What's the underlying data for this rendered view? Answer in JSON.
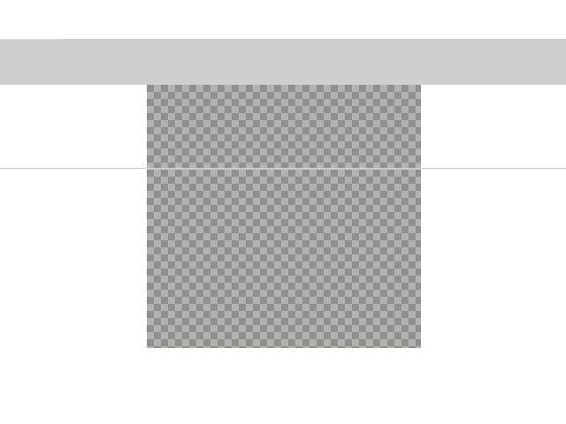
{
  "window": {
    "title": ""
  },
  "toolbar": {
    "label": ""
  },
  "canvas": {
    "pattern": "transparency-checkerboard",
    "colors": {
      "dark": "#8f8f92",
      "light": "#b1b1ae",
      "bar": "#cfcfcf",
      "background": "#ffffff",
      "guide": "#c9c9c9"
    }
  }
}
